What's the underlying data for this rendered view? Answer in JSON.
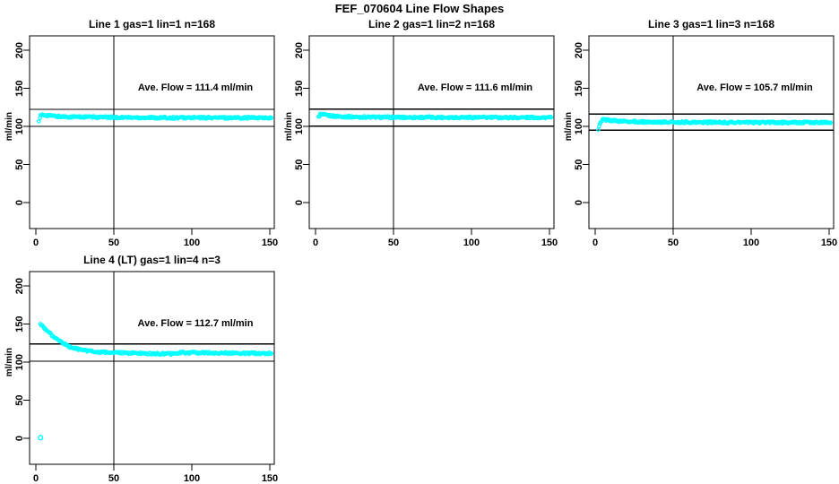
{
  "page_title": "FEF_070604  Line Flow Shapes",
  "colors": {
    "background": "#ffffff",
    "axis": "#000000",
    "text": "#000000",
    "data_points": "#00ffff"
  },
  "layout_hints": {
    "grid": "2 rows x 3 cols, 4 panels used",
    "legend": "none",
    "y_tick_label_orientation": "rotated 90deg"
  },
  "chart_data": [
    {
      "type": "scatter",
      "title": "Line 1 gas=1 lin=1 n=168",
      "annotation": "Ave. Flow =  111.4  ml/min",
      "ave_flow_ml_min": 111.4,
      "n": 168,
      "ylabel": "ml/min",
      "xlim": [
        -4,
        153
      ],
      "ylim": [
        -34,
        219
      ],
      "xticks": [
        0,
        50,
        100,
        150
      ],
      "yticks": [
        0,
        50,
        100,
        150,
        200
      ],
      "vline_x": 50,
      "ref_lines_y": [
        122.5,
        100.3
      ],
      "profile": [
        [
          2,
          108
        ],
        [
          3,
          114.5
        ],
        [
          5,
          115
        ],
        [
          8,
          114.5
        ],
        [
          15,
          113
        ],
        [
          30,
          112.5
        ],
        [
          50,
          112
        ],
        [
          80,
          111.5
        ],
        [
          110,
          111.5
        ],
        [
          151,
          111.5
        ]
      ],
      "outliers": []
    },
    {
      "type": "scatter",
      "title": "Line 2 gas=1 lin=2 n=168",
      "annotation": "Ave. Flow =  111.6  ml/min",
      "ave_flow_ml_min": 111.6,
      "n": 168,
      "ylabel": "ml/min",
      "xlim": [
        -4,
        153
      ],
      "ylim": [
        -34,
        219
      ],
      "xticks": [
        0,
        50,
        100,
        150
      ],
      "yticks": [
        0,
        50,
        100,
        150,
        200
      ],
      "vline_x": 50,
      "ref_lines_y": [
        122.8,
        100.4
      ],
      "profile": [
        [
          2,
          112
        ],
        [
          3,
          116
        ],
        [
          6,
          115
        ],
        [
          12,
          113.5
        ],
        [
          25,
          112.5
        ],
        [
          50,
          112
        ],
        [
          90,
          112
        ],
        [
          120,
          111.8
        ],
        [
          151,
          111.8
        ]
      ],
      "outliers": []
    },
    {
      "type": "scatter",
      "title": "Line 3 gas=1 lin=3 n=168",
      "annotation": "Ave. Flow =  105.7  ml/min",
      "ave_flow_ml_min": 105.7,
      "n": 168,
      "ylabel": "ml/min",
      "xlim": [
        -4,
        153
      ],
      "ylim": [
        -34,
        219
      ],
      "xticks": [
        0,
        50,
        100,
        150
      ],
      "yticks": [
        0,
        50,
        100,
        150,
        200
      ],
      "vline_x": 50,
      "ref_lines_y": [
        116.3,
        95.1
      ],
      "profile": [
        [
          2,
          97
        ],
        [
          3,
          103
        ],
        [
          5,
          109.5
        ],
        [
          8,
          108.5
        ],
        [
          15,
          107
        ],
        [
          30,
          106
        ],
        [
          60,
          105.5
        ],
        [
          100,
          105.2
        ],
        [
          151,
          105.2
        ]
      ],
      "outliers": []
    },
    {
      "type": "scatter",
      "title": "Line 4 (LT) gas=1 lin=4 n=3",
      "annotation": "Ave. Flow =  112.7  ml/min",
      "ave_flow_ml_min": 112.7,
      "n": 3,
      "ylabel": "ml/min",
      "xlim": [
        -4,
        153
      ],
      "ylim": [
        -34,
        219
      ],
      "xticks": [
        0,
        50,
        100,
        150
      ],
      "yticks": [
        0,
        50,
        100,
        150,
        200
      ],
      "vline_x": 50,
      "ref_lines_y": [
        124.0,
        101.4
      ],
      "profile": [
        [
          3,
          150
        ],
        [
          5,
          146
        ],
        [
          8,
          140
        ],
        [
          11,
          134
        ],
        [
          14,
          129
        ],
        [
          18,
          124
        ],
        [
          22,
          120
        ],
        [
          27,
          117
        ],
        [
          33,
          115
        ],
        [
          40,
          113.5
        ],
        [
          50,
          112.5
        ],
        [
          62,
          112
        ],
        [
          75,
          111.2
        ],
        [
          88,
          111
        ],
        [
          93,
          112.5
        ],
        [
          105,
          112.5
        ],
        [
          125,
          112
        ],
        [
          151,
          111.5
        ]
      ],
      "outliers": [
        [
          3,
          1
        ]
      ]
    }
  ]
}
